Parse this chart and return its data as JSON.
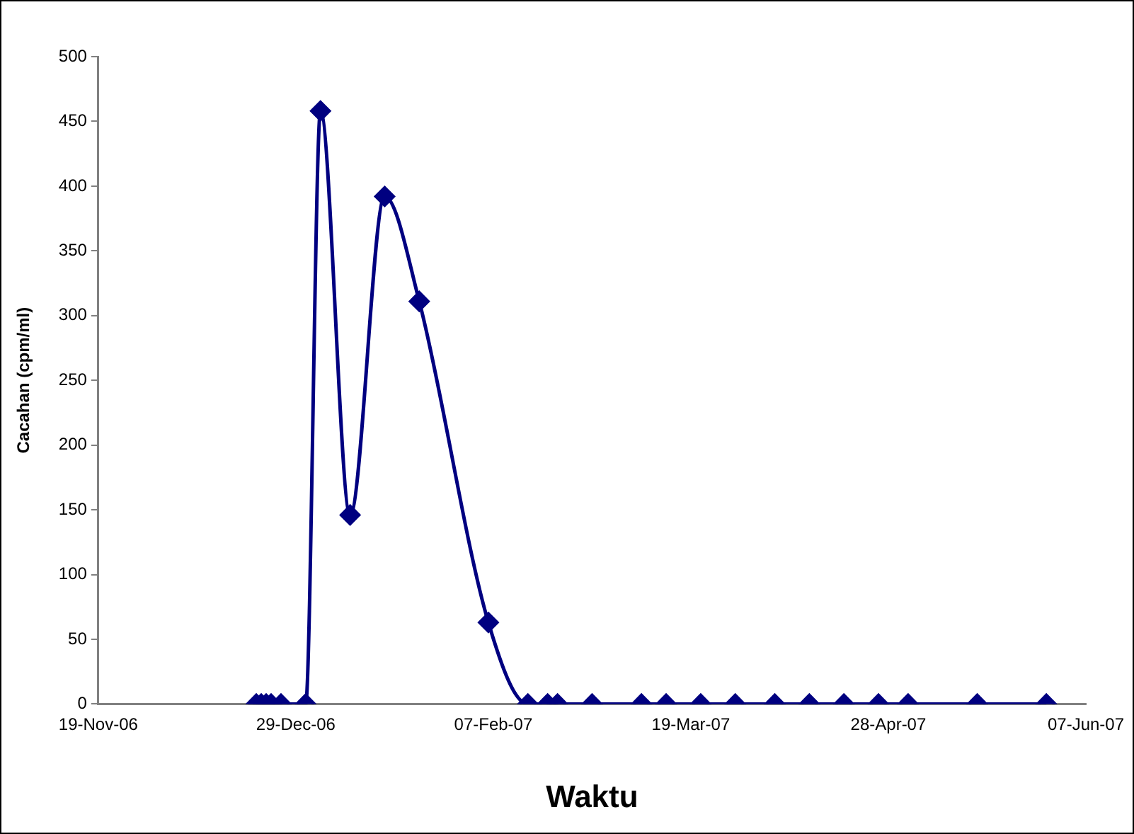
{
  "chart_data": {
    "type": "line",
    "xlabel": "Waktu",
    "ylabel": "Cacahan (cpm/ml)",
    "x": [
      "2006-12-21",
      "2006-12-22",
      "2006-12-23",
      "2006-12-24",
      "2006-12-26",
      "2006-12-31",
      "2007-01-03",
      "2007-01-09",
      "2007-01-16",
      "2007-01-23",
      "2007-02-06",
      "2007-02-14",
      "2007-02-18",
      "2007-02-20",
      "2007-02-27",
      "2007-03-09",
      "2007-03-14",
      "2007-03-21",
      "2007-03-28",
      "2007-04-05",
      "2007-04-12",
      "2007-04-19",
      "2007-04-26",
      "2007-05-02",
      "2007-05-16",
      "2007-05-30"
    ],
    "series": [
      {
        "color": "#000080",
        "values": [
          0,
          0,
          0,
          0,
          0,
          0,
          458,
          146,
          392,
          311,
          63,
          0,
          0,
          0,
          0,
          0,
          0,
          0,
          0,
          0,
          0,
          0,
          0,
          0,
          0,
          0
        ]
      }
    ],
    "xlim": [
      "2006-11-19",
      "2007-06-07"
    ],
    "xticks": [
      {
        "value": "2006-11-19",
        "label": "19-Nov-06"
      },
      {
        "value": "2006-12-29",
        "label": "29-Dec-06"
      },
      {
        "value": "2007-02-07",
        "label": "07-Feb-07"
      },
      {
        "value": "2007-03-19",
        "label": "19-Mar-07"
      },
      {
        "value": "2007-04-28",
        "label": "28-Apr-07"
      },
      {
        "value": "2007-06-07",
        "label": "07-Jun-07"
      }
    ],
    "ylim": [
      0,
      500
    ],
    "yticks": [
      0,
      50,
      100,
      150,
      200,
      250,
      300,
      350,
      400,
      450,
      500
    ],
    "grid": false,
    "legend": false,
    "marker": "diamond",
    "line_style": "solid"
  }
}
